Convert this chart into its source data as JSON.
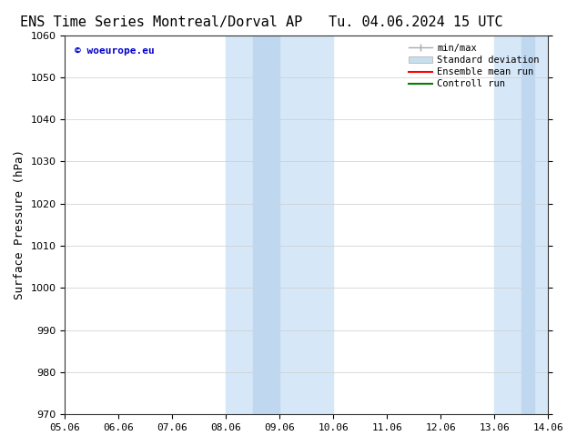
{
  "title_left": "ENS Time Series Montreal/Dorval AP",
  "title_right": "Tu. 04.06.2024 15 UTC",
  "ylabel": "Surface Pressure (hPa)",
  "xlabel": "",
  "ylim": [
    970,
    1060
  ],
  "yticks": [
    970,
    980,
    990,
    1000,
    1010,
    1020,
    1030,
    1040,
    1050,
    1060
  ],
  "xtick_labels": [
    "05.06",
    "06.06",
    "07.06",
    "08.06",
    "09.06",
    "10.06",
    "11.06",
    "12.06",
    "13.06",
    "14.06"
  ],
  "xtick_positions": [
    0,
    1,
    2,
    3,
    4,
    5,
    6,
    7,
    8,
    9
  ],
  "shaded_regions": [
    {
      "x_start": 3,
      "x_end": 5,
      "color": "#d6e8f7"
    },
    {
      "x_start": 8,
      "x_end": 9,
      "color": "#d6e8f7"
    }
  ],
  "shaded_sub_regions": [
    {
      "x_start": 3.5,
      "x_end": 4,
      "color": "#c0d8ef"
    },
    {
      "x_start": 8.5,
      "x_end": 8.75,
      "color": "#c0d8ef"
    }
  ],
  "watermark_text": "© woeurope.eu",
  "watermark_color": "#0000cc",
  "legend_items": [
    {
      "label": "min/max",
      "color": "#aaaaaa",
      "style": "line_with_cap"
    },
    {
      "label": "Standard deviation",
      "color": "#c8dff0",
      "style": "bar"
    },
    {
      "label": "Ensemble mean run",
      "color": "#ff0000",
      "style": "line"
    },
    {
      "label": "Controll run",
      "color": "#008000",
      "style": "line"
    }
  ],
  "background_color": "#ffffff",
  "grid_color": "#cccccc",
  "title_fontsize": 11,
  "axis_fontsize": 9,
  "tick_fontsize": 8
}
